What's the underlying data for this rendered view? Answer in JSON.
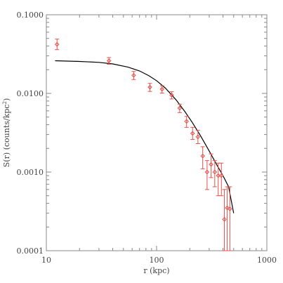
{
  "chart_data": {
    "type": "scatter",
    "xlabel": "r (kpc)",
    "ylabel_main": "S(r) (counts/kpc",
    "ylabel_sup": "2",
    "ylabel_close": ")",
    "xscale": "log",
    "yscale": "log",
    "xlim": [
      10,
      1000
    ],
    "ylim": [
      0.0001,
      0.1
    ],
    "x_ticks": [
      {
        "value": 10,
        "label": "10"
      },
      {
        "value": 100,
        "label": "100"
      },
      {
        "value": 1000,
        "label": "1000"
      }
    ],
    "y_ticks": [
      {
        "value": 0.0001,
        "label": "0.0001"
      },
      {
        "value": 0.001,
        "label": "0.0010"
      },
      {
        "value": 0.01,
        "label": "0.0100"
      },
      {
        "value": 0.1,
        "label": "0.1000"
      }
    ],
    "grid": false,
    "colors": {
      "points": "#e8504a",
      "model": "#000000",
      "frame": "#888888",
      "text": "#444444"
    },
    "series": [
      {
        "kind": "points_with_errorbars",
        "points": [
          {
            "x": 12.5,
            "y": 0.042,
            "ylo": 0.036,
            "yhi": 0.049
          },
          {
            "x": 37,
            "y": 0.026,
            "ylo": 0.0235,
            "yhi": 0.0285
          },
          {
            "x": 62,
            "y": 0.017,
            "ylo": 0.015,
            "yhi": 0.019
          },
          {
            "x": 87,
            "y": 0.012,
            "ylo": 0.0106,
            "yhi": 0.0134
          },
          {
            "x": 112,
            "y": 0.0113,
            "ylo": 0.0101,
            "yhi": 0.0125
          },
          {
            "x": 137,
            "y": 0.0095,
            "ylo": 0.0085,
            "yhi": 0.0105
          },
          {
            "x": 162,
            "y": 0.0065,
            "ylo": 0.0057,
            "yhi": 0.0073
          },
          {
            "x": 187,
            "y": 0.0044,
            "ylo": 0.0037,
            "yhi": 0.0051
          },
          {
            "x": 212,
            "y": 0.0031,
            "ylo": 0.0026,
            "yhi": 0.0037
          },
          {
            "x": 237,
            "y": 0.0028,
            "ylo": 0.0023,
            "yhi": 0.0034
          },
          {
            "x": 262,
            "y": 0.0016,
            "ylo": 0.0011,
            "yhi": 0.0021
          },
          {
            "x": 287,
            "y": 0.001,
            "ylo": 0.0006,
            "yhi": 0.0014
          },
          {
            "x": 312,
            "y": 0.00125,
            "ylo": 0.00085,
            "yhi": 0.0017
          },
          {
            "x": 337,
            "y": 0.001,
            "ylo": 0.00065,
            "yhi": 0.0014
          },
          {
            "x": 362,
            "y": 0.0009,
            "ylo": 0.0005,
            "yhi": 0.0013
          },
          {
            "x": 387,
            "y": 0.0009,
            "ylo": 0.0005,
            "yhi": 0.0013
          },
          {
            "x": 412,
            "y": 0.00025,
            "ylo": 0.0001,
            "yhi": 0.0006
          },
          {
            "x": 437,
            "y": 0.00035,
            "ylo": 0.0001,
            "yhi": 0.00065
          },
          {
            "x": 462,
            "y": 0.00034,
            "ylo": 0.0001,
            "yhi": 0.00065
          }
        ]
      },
      {
        "kind": "model_curve",
        "x": [
          12,
          20,
          30,
          40,
          55,
          70,
          85,
          100,
          120,
          150,
          180,
          210,
          250,
          300,
          350,
          400,
          450,
          500
        ],
        "y": [
          0.026,
          0.0255,
          0.0248,
          0.0237,
          0.0216,
          0.0193,
          0.0168,
          0.0145,
          0.0117,
          0.0083,
          0.0059,
          0.0043,
          0.0029,
          0.00185,
          0.00125,
          0.0009,
          0.00065,
          0.0003
        ]
      }
    ]
  }
}
